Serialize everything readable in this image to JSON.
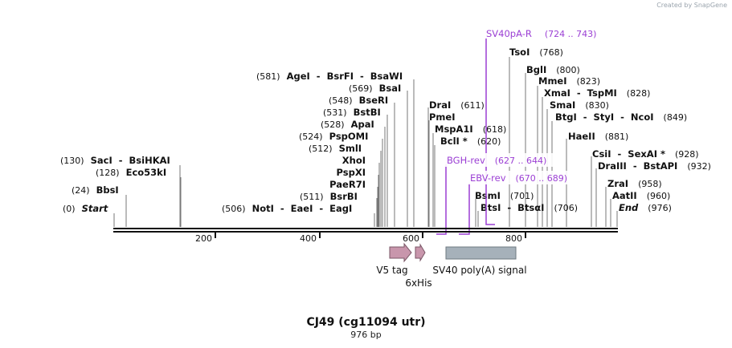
{
  "credit": "Created by SnapGene",
  "title": "CJ49 (cg11094 utr)",
  "subtitle": "976 bp",
  "ticks": [
    "200",
    "400",
    "600",
    "800"
  ],
  "sites": [
    {
      "num": "(0)",
      "name": "Start",
      "italic": true
    },
    {
      "num": "(24)",
      "name": "BbsI"
    },
    {
      "num": "(128)",
      "name": "Eco53kI"
    },
    {
      "num": "(130)",
      "name": "SacI  -  BsiHKAI"
    },
    {
      "num": "(506)",
      "name": "NotI  -  EaeI  -  EagI"
    },
    {
      "num": "(511)",
      "name": "BsrBI"
    },
    {
      "num": "",
      "name": "PaeR7I"
    },
    {
      "num": "",
      "name": "PspXI"
    },
    {
      "num": "",
      "name": "XhoI"
    },
    {
      "num": "(512)",
      "name": "SmlI"
    },
    {
      "num": "(524)",
      "name": "PspOMI"
    },
    {
      "num": "(528)",
      "name": "ApaI"
    },
    {
      "num": "(531)",
      "name": "BstBI"
    },
    {
      "num": "(548)",
      "name": "BseRI"
    },
    {
      "num": "(569)",
      "name": "BsaI"
    },
    {
      "num": "(581)",
      "name": "AgeI  -  BsrFI  -  BsaWI"
    },
    {
      "num": "(611)",
      "name": "DraI"
    },
    {
      "num": "",
      "name": "PmeI"
    },
    {
      "num": "(618)",
      "name": "MspA1I"
    },
    {
      "num": "(620)",
      "name": "BclI *"
    },
    {
      "num": "(701)",
      "name": "BsmI"
    },
    {
      "num": "(706)",
      "name": "BtsI  -  BtsαI"
    },
    {
      "num": "(768)",
      "name": "TsoI"
    },
    {
      "num": "(800)",
      "name": "BglI"
    },
    {
      "num": "(823)",
      "name": "MmeI"
    },
    {
      "num": "(828)",
      "name": "XmaI  -  TspMI"
    },
    {
      "num": "(830)",
      "name": "SmaI"
    },
    {
      "num": "(849)",
      "name": "BtgI  -  StyI  -  NcoI"
    },
    {
      "num": "(881)",
      "name": "HaeII"
    },
    {
      "num": "(928)",
      "name": "CsiI  -  SexAI *"
    },
    {
      "num": "(932)",
      "name": "DraIII  -  BstAPI"
    },
    {
      "num": "(958)",
      "name": "ZraI"
    },
    {
      "num": "(960)",
      "name": "AatII"
    },
    {
      "num": "(976)",
      "name": "End",
      "italic": true
    }
  ],
  "primers": [
    {
      "name": "SV40pA-R",
      "range": "(724 .. 743)"
    },
    {
      "name": "BGH-rev",
      "range": "(627 .. 644)"
    },
    {
      "name": "EBV-rev",
      "range": "(670 .. 689)"
    }
  ],
  "features": [
    {
      "name": "V5 tag"
    },
    {
      "name": "6xHis"
    },
    {
      "name": "SV40 poly(A) signal"
    }
  ],
  "colors": {
    "primer": "#9b3fd4",
    "arrow_feature": "#c896ac",
    "polyA_feature": "#a6b1ba",
    "backbone": "#111111"
  }
}
